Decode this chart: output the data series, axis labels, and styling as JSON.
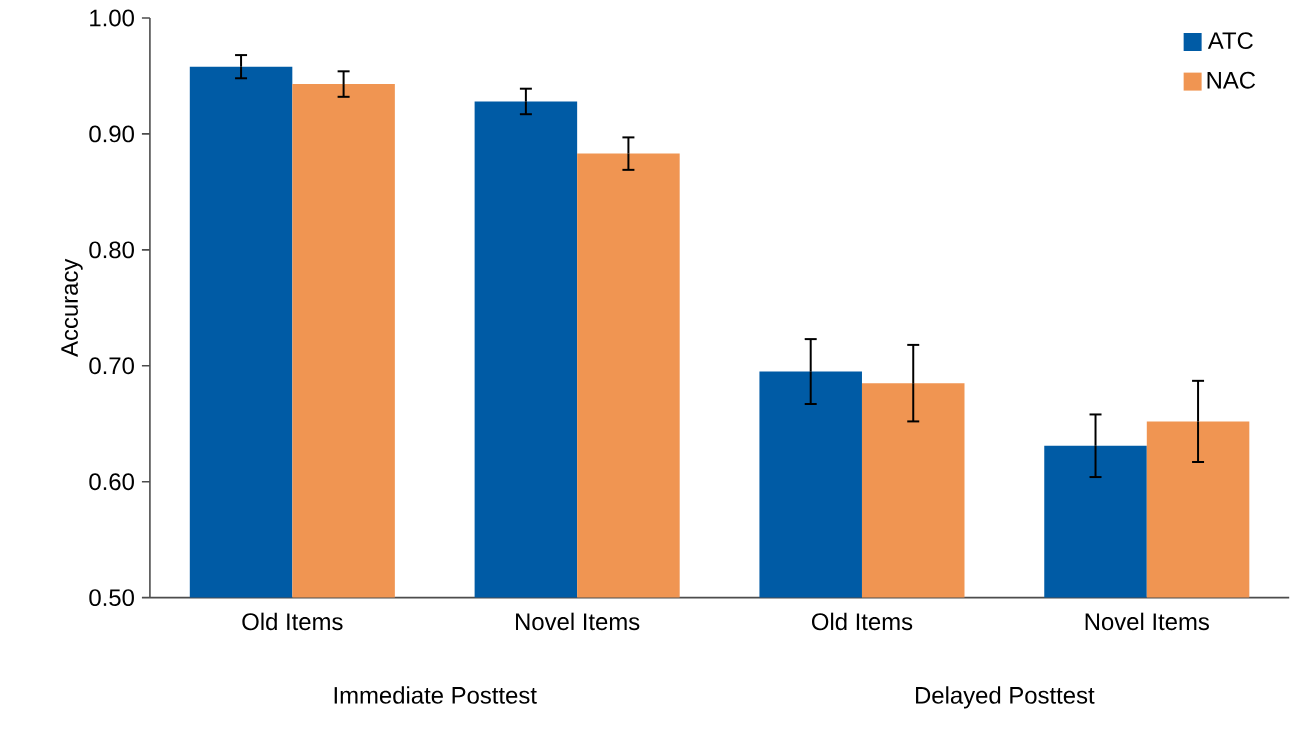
{
  "chart_data": {
    "type": "bar",
    "ylabel": "Accuracy",
    "categories": [
      "Old Items",
      "Novel Items",
      "Old Items",
      "Novel Items"
    ],
    "series": [
      {
        "name": "ATC",
        "color": "#005ba5",
        "values": [
          0.958,
          0.928,
          0.695,
          0.631
        ],
        "errors": [
          0.01,
          0.011,
          0.028,
          0.027
        ]
      },
      {
        "name": "NAC",
        "color": "#f09552",
        "values": [
          0.943,
          0.883,
          0.685,
          0.652
        ],
        "errors": [
          0.011,
          0.014,
          0.033,
          0.035
        ]
      }
    ],
    "ylim": [
      0.5,
      1.0
    ],
    "yticks": [
      {
        "value": 0.5,
        "label": "0.50"
      },
      {
        "value": 0.6,
        "label": "0.60"
      },
      {
        "value": 0.7,
        "label": "0.70"
      },
      {
        "value": 0.8,
        "label": "0.80"
      },
      {
        "value": 0.9,
        "label": "0.90"
      },
      {
        "value": 1.0,
        "label": "1.00"
      }
    ],
    "annotations": [
      "Immediate Posttest",
      "Delayed Posttest"
    ],
    "grid": false,
    "legend": "top right"
  }
}
